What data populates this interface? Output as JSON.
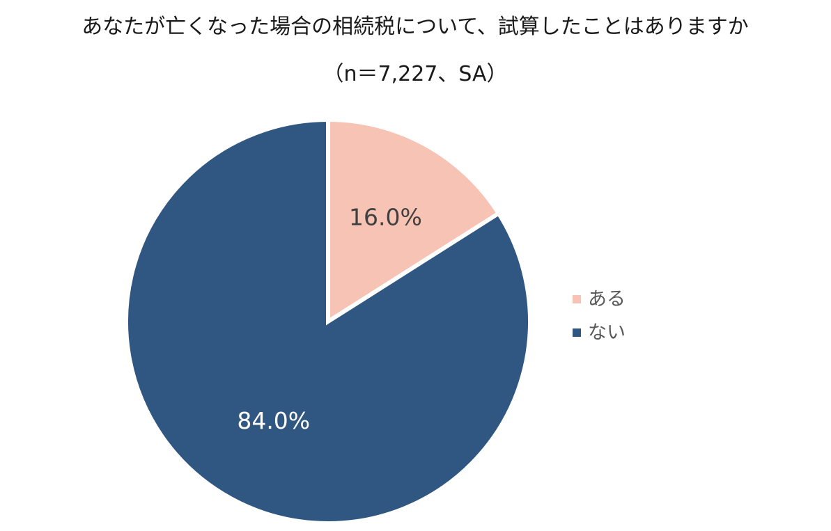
{
  "chart_data": {
    "type": "pie",
    "title_lines": [
      "あなたが亡くなった場合の相続税について、試算したことはありますか",
      "（n＝7,227、SA）"
    ],
    "series": [
      {
        "values": [
          {
            "label": "ある",
            "value": 16.0,
            "display": "16.0%",
            "color": "#f7c3b4",
            "label_color": "#404040"
          },
          {
            "label": "ない",
            "value": 84.0,
            "display": "84.0%",
            "color": "#305782",
            "label_color": "#ffffff"
          }
        ]
      }
    ],
    "legend_position": "right",
    "start_angle_deg": 0,
    "direction": "clockwise"
  }
}
